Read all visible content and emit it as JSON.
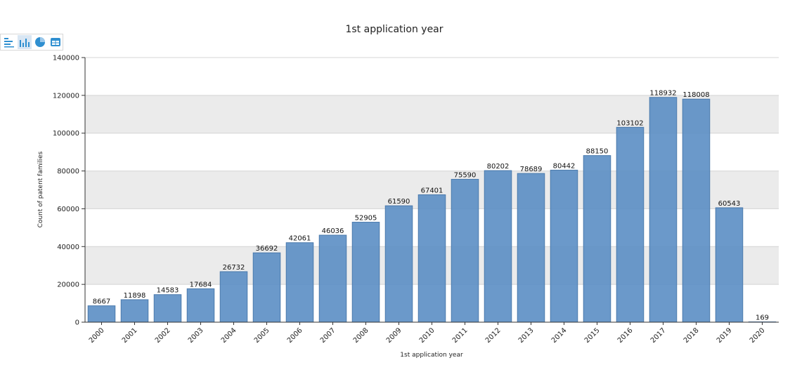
{
  "toolbar": {
    "buttons": [
      {
        "icon": "horizontal-bar-chart-icon"
      },
      {
        "icon": "vertical-bar-chart-icon"
      },
      {
        "icon": "pie-chart-icon"
      },
      {
        "icon": "table-icon"
      }
    ]
  },
  "colors": {
    "bar": "#5b8ec4",
    "bar_stroke": "#4a7aad",
    "band": "#ebebeb",
    "icon": "#2f8fd0"
  },
  "chart_data": {
    "type": "bar",
    "title": "1st application year",
    "xlabel": "1st application year",
    "ylabel": "Count of patent families",
    "ylim": [
      0,
      140000
    ],
    "yticks": [
      0,
      20000,
      40000,
      60000,
      80000,
      100000,
      120000,
      140000
    ],
    "categories": [
      "2000",
      "2001",
      "2002",
      "2003",
      "2004",
      "2005",
      "2006",
      "2007",
      "2008",
      "2009",
      "2010",
      "2011",
      "2012",
      "2013",
      "2014",
      "2015",
      "2016",
      "2017",
      "2018",
      "2019",
      "2020"
    ],
    "values": [
      8667,
      11898,
      14583,
      17684,
      26732,
      36692,
      42061,
      46036,
      52905,
      61590,
      67401,
      75590,
      80202,
      78689,
      80442,
      88150,
      103102,
      118932,
      118008,
      60543,
      169
    ],
    "grid": true,
    "banded_background": true,
    "legend": "none"
  }
}
